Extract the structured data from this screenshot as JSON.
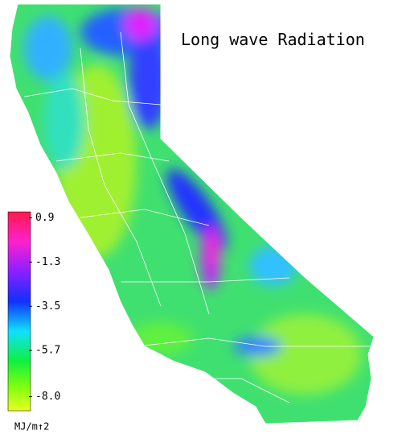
{
  "title": "Long wave Radiation",
  "colorbar": {
    "lim": [
      -8.7,
      1.2
    ],
    "ticks": [
      0.9,
      -1.3,
      -3.5,
      -5.7,
      {
        "value": -8,
        "label": "-8.0"
      }
    ],
    "unit": "MJ/m↑2"
  }
}
